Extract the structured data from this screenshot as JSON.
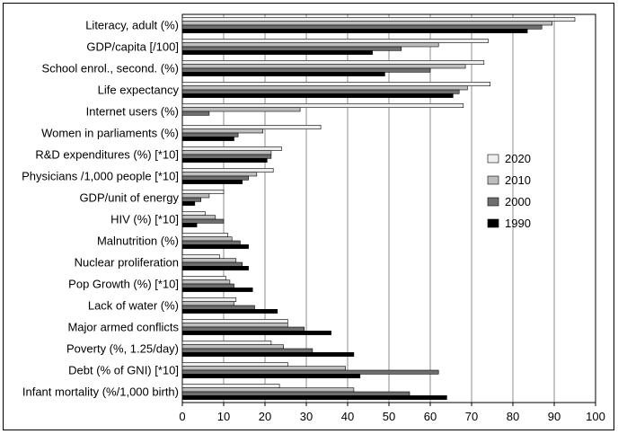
{
  "chart_data": {
    "type": "bar",
    "orientation": "horizontal",
    "categories": [
      "Literacy, adult (%)",
      "GDP/capita [/100]",
      "School enrol., second. (%)",
      "Life expectancy",
      "Internet users (%)",
      "Women in parliaments (%)",
      "R&D expenditures (%) [*10]",
      "Physicians /1,000 people [*10]",
      "GDP/unit of energy",
      "HIV (%) [*10]",
      "Malnutrition (%)",
      "Nuclear proliferation",
      "Pop Growth (%) [*10]",
      "Lack of water (%)",
      "Major armed conflicts",
      "Poverty (%, 1.25/day)",
      "Debt (% of GNI) [*10]",
      "Infant mortality (%/1,000 birth)"
    ],
    "series": [
      {
        "name": "2020",
        "color": "#efefef",
        "values": [
          95,
          74,
          73,
          74.5,
          68,
          33.5,
          24,
          22,
          10,
          5.5,
          11,
          9,
          10.5,
          13,
          25.5,
          21.5,
          25.5,
          23.5
        ]
      },
      {
        "name": "2010",
        "color": "#bdbdbd",
        "values": [
          89.5,
          62,
          68.5,
          69,
          28.5,
          19.5,
          21.5,
          18,
          6.5,
          8,
          12,
          13,
          11.5,
          12.5,
          25.5,
          24.5,
          39.5,
          41.5
        ]
      },
      {
        "name": "2000",
        "color": "#6e6e6e",
        "values": [
          87,
          53,
          60,
          67,
          6.5,
          13.5,
          21.5,
          16,
          4.5,
          10,
          14,
          14.5,
          12.5,
          17.5,
          29.5,
          31.5,
          62,
          55
        ]
      },
      {
        "name": "1990",
        "color": "#000000",
        "values": [
          83.5,
          46,
          49,
          65.5,
          0,
          12.5,
          20.5,
          14.5,
          3,
          3.5,
          16,
          16,
          17,
          23,
          36,
          41.5,
          43,
          64
        ]
      }
    ],
    "xlim": [
      0,
      100
    ],
    "xticks": [
      "0",
      "10",
      "20",
      "30",
      "40",
      "50",
      "60",
      "70",
      "80",
      "90",
      "100"
    ],
    "grid": "vertical",
    "legend_position": "right"
  }
}
